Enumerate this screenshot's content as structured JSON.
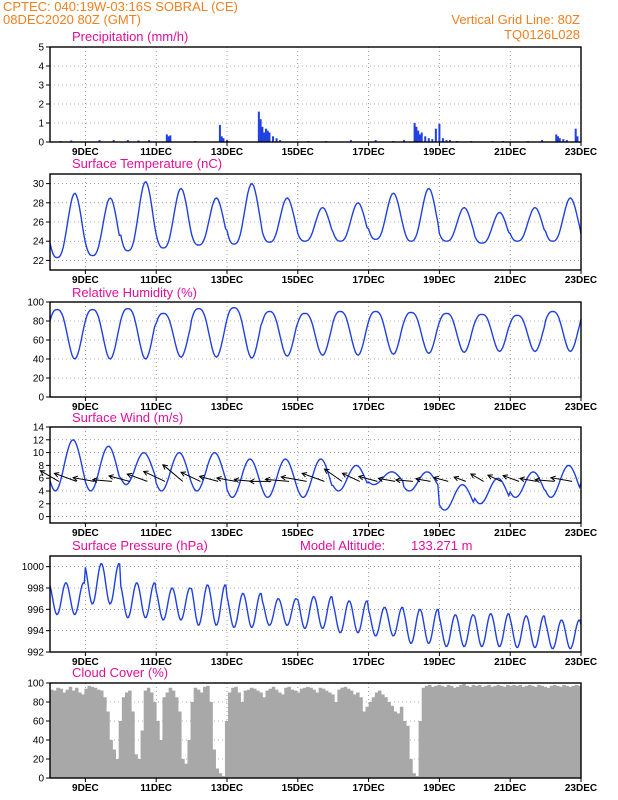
{
  "header": {
    "line1_left": "CPTEC:   040:19W-03:16S   SOBRAL (CE)",
    "line2_left": "08DEC2020 80Z (GMT)",
    "line1_right": "Vertical Grid Line: 80Z",
    "line2_right": "TQ0126L028"
  },
  "colors": {
    "header": "#f08020",
    "panel_title": "#e0109a",
    "series": "#2040e0",
    "cloud": "#a8a8a8"
  },
  "chart_data": [
    {
      "type": "bar",
      "title": "Precipitation (mm/h)",
      "x_ticks": [
        "9DEC",
        "11DEC",
        "13DEC",
        "15DEC",
        "17DEC",
        "19DEC",
        "21DEC",
        "23DEC"
      ],
      "ylim": [
        0,
        5
      ],
      "yticks": [
        0,
        1,
        2,
        3,
        4,
        5
      ],
      "grid": true,
      "x_range_days": [
        8.0,
        23.0
      ],
      "x": [
        8.3,
        8.6,
        9.4,
        9.8,
        10.2,
        10.5,
        10.8,
        11.3,
        11.35,
        11.4,
        12.1,
        12.8,
        12.85,
        12.9,
        13.0,
        13.9,
        13.95,
        14.0,
        14.05,
        14.1,
        14.15,
        14.2,
        14.3,
        14.4,
        14.5,
        15.3,
        15.8,
        16.5,
        17.2,
        17.7,
        18.0,
        18.3,
        18.35,
        18.4,
        18.45,
        18.5,
        18.6,
        18.7,
        18.8,
        18.9,
        19.0,
        19.1,
        19.2,
        19.3,
        19.5,
        19.9,
        20.5,
        20.8,
        21.5,
        21.9,
        22.3,
        22.35,
        22.4,
        22.5,
        22.6,
        22.85,
        22.9
      ],
      "values": [
        0.05,
        0.08,
        0.1,
        0.1,
        0.1,
        0.08,
        0.1,
        0.4,
        0.3,
        0.35,
        0.05,
        0.9,
        0.3,
        0.2,
        0.1,
        1.6,
        1.2,
        0.8,
        0.5,
        0.7,
        0.6,
        0.5,
        0.3,
        0.2,
        0.1,
        0.05,
        0.05,
        0.1,
        0.1,
        0.05,
        0.1,
        1.0,
        0.8,
        0.6,
        0.4,
        0.5,
        0.3,
        0.2,
        0.15,
        0.7,
        0.95,
        0.2,
        0.1,
        0.1,
        0.05,
        0.05,
        0.05,
        0.05,
        0.05,
        0.1,
        0.4,
        0.3,
        0.2,
        0.15,
        0.1,
        0.7,
        0.3
      ]
    },
    {
      "type": "line",
      "title": "Surface Temperature (nC)",
      "x_ticks": [
        "9DEC",
        "11DEC",
        "13DEC",
        "15DEC",
        "17DEC",
        "19DEC",
        "21DEC",
        "23DEC"
      ],
      "ylim": [
        21,
        31
      ],
      "yticks": [
        22,
        24,
        26,
        28,
        30
      ],
      "grid": true,
      "x_range_days": [
        8.0,
        23.0
      ],
      "daily_max": [
        29.0,
        28.5,
        30.2,
        29.5,
        28.5,
        30.0,
        28.5,
        27.5,
        28.0,
        29.0,
        29.5,
        27.5,
        27.0,
        27.5,
        28.5,
        27.5
      ],
      "daily_min": [
        22.3,
        22.5,
        23.0,
        23.3,
        23.6,
        23.7,
        23.9,
        24.0,
        24.0,
        24.2,
        24.0,
        24.0,
        23.8,
        24.0,
        24.0,
        24.0
      ]
    },
    {
      "type": "line",
      "title": "Relative Humidity (%)",
      "x_ticks": [
        "9DEC",
        "11DEC",
        "13DEC",
        "15DEC",
        "17DEC",
        "19DEC",
        "21DEC",
        "23DEC"
      ],
      "ylim": [
        0,
        100
      ],
      "yticks": [
        0,
        20,
        40,
        60,
        80,
        100
      ],
      "grid": true,
      "x_range_days": [
        8.0,
        23.0
      ],
      "daily_max": [
        92,
        92,
        93,
        88,
        93,
        94,
        90,
        88,
        90,
        90,
        89,
        88,
        87,
        86,
        90,
        92
      ],
      "daily_min": [
        40,
        40,
        40,
        42,
        42,
        41,
        43,
        44,
        44,
        45,
        46,
        47,
        48,
        48,
        48,
        48
      ]
    },
    {
      "type": "line",
      "title": "Surface Wind (m/s)",
      "x_ticks": [
        "9DEC",
        "11DEC",
        "13DEC",
        "15DEC",
        "17DEC",
        "19DEC",
        "21DEC",
        "23DEC"
      ],
      "ylim": [
        -1,
        14
      ],
      "yticks": [
        0,
        2,
        4,
        6,
        8,
        10,
        12,
        14
      ],
      "grid": true,
      "x_range_days": [
        8.0,
        23.0
      ],
      "speed_peak": [
        12,
        11,
        10,
        10,
        10,
        9,
        9,
        9,
        8,
        7,
        7,
        5,
        6,
        7,
        8,
        10
      ],
      "speed_low": [
        4,
        4,
        5,
        4,
        4,
        3,
        3,
        3,
        4,
        5,
        4,
        1,
        2,
        3,
        3,
        4
      ],
      "wind_dir_deg": [
        120,
        110,
        100,
        95,
        105,
        110,
        115,
        130,
        115,
        105,
        100,
        95,
        90,
        95,
        100,
        110,
        125,
        115,
        105,
        100,
        95,
        100,
        105,
        110,
        120,
        115,
        110,
        100,
        95,
        100
      ],
      "wind_speed": [
        7,
        8,
        7,
        6,
        7,
        7,
        8,
        9,
        7,
        6,
        6,
        6,
        7,
        8,
        9,
        8,
        7,
        6,
        6,
        5,
        5,
        4,
        4,
        3,
        4,
        4,
        5,
        5,
        6,
        7
      ]
    },
    {
      "type": "line",
      "title": "Surface Pressure (hPa)",
      "annotation_label": "Model Altitude:",
      "annotation_value": "133.271 m",
      "x_ticks": [
        "9DEC",
        "11DEC",
        "13DEC",
        "15DEC",
        "17DEC",
        "19DEC",
        "21DEC",
        "23DEC"
      ],
      "ylim": [
        992,
        1001
      ],
      "yticks": [
        992,
        994,
        996,
        998,
        1000
      ],
      "grid": true,
      "x_range_days": [
        8.0,
        23.0
      ],
      "daily_max": [
        998.5,
        1000.3,
        998.5,
        998.0,
        998.3,
        997.5,
        997.0,
        997.2,
        996.8,
        996.2,
        996.0,
        995.5,
        995.6,
        995.4,
        995.0,
        994.8
      ],
      "daily_min": [
        995.5,
        996.5,
        995.2,
        995.0,
        994.5,
        994.3,
        994.5,
        994.2,
        993.8,
        993.5,
        992.8,
        992.5,
        992.5,
        992.4,
        992.3,
        992.5
      ]
    },
    {
      "type": "bar",
      "title": "Cloud Cover (%)",
      "x_ticks": [
        "9DEC",
        "11DEC",
        "13DEC",
        "15DEC",
        "17DEC",
        "19DEC",
        "21DEC",
        "23DEC"
      ],
      "ylim": [
        0,
        100
      ],
      "yticks": [
        0,
        20,
        40,
        60,
        80,
        100
      ],
      "grid": true,
      "x_range_days": [
        8.0,
        23.0
      ],
      "values": [
        93,
        92,
        95,
        94,
        90,
        93,
        96,
        92,
        95,
        90,
        88,
        94,
        97,
        96,
        95,
        93,
        92,
        85,
        70,
        40,
        30,
        20,
        60,
        85,
        90,
        92,
        70,
        25,
        20,
        50,
        92,
        95,
        90,
        80,
        60,
        40,
        85,
        90,
        95,
        92,
        85,
        70,
        20,
        15,
        40,
        80,
        95,
        93,
        90,
        96,
        97,
        80,
        30,
        10,
        5,
        2,
        60,
        90,
        95,
        96,
        90,
        80,
        92,
        93,
        95,
        94,
        92,
        90,
        85,
        92,
        94,
        96,
        93,
        90,
        88,
        95,
        96,
        93,
        92,
        90,
        94,
        95,
        96,
        95,
        93,
        90,
        95,
        94,
        92,
        90,
        88,
        80,
        93,
        95,
        96,
        94,
        92,
        88,
        90,
        85,
        70,
        75,
        80,
        85,
        90,
        92,
        88,
        85,
        80,
        76,
        70,
        68,
        75,
        60,
        55,
        20,
        5,
        2,
        60,
        95,
        97,
        98,
        96,
        97,
        98,
        97,
        96,
        98,
        97,
        95,
        96,
        98,
        99,
        97,
        96,
        98,
        97,
        98,
        96,
        97,
        98,
        96,
        97,
        98,
        97,
        96,
        98,
        97,
        98,
        97,
        98,
        96,
        97,
        98,
        97,
        96,
        98,
        97,
        96,
        95,
        97,
        98,
        97,
        96,
        98,
        97,
        96,
        97,
        98,
        97
      ]
    }
  ]
}
